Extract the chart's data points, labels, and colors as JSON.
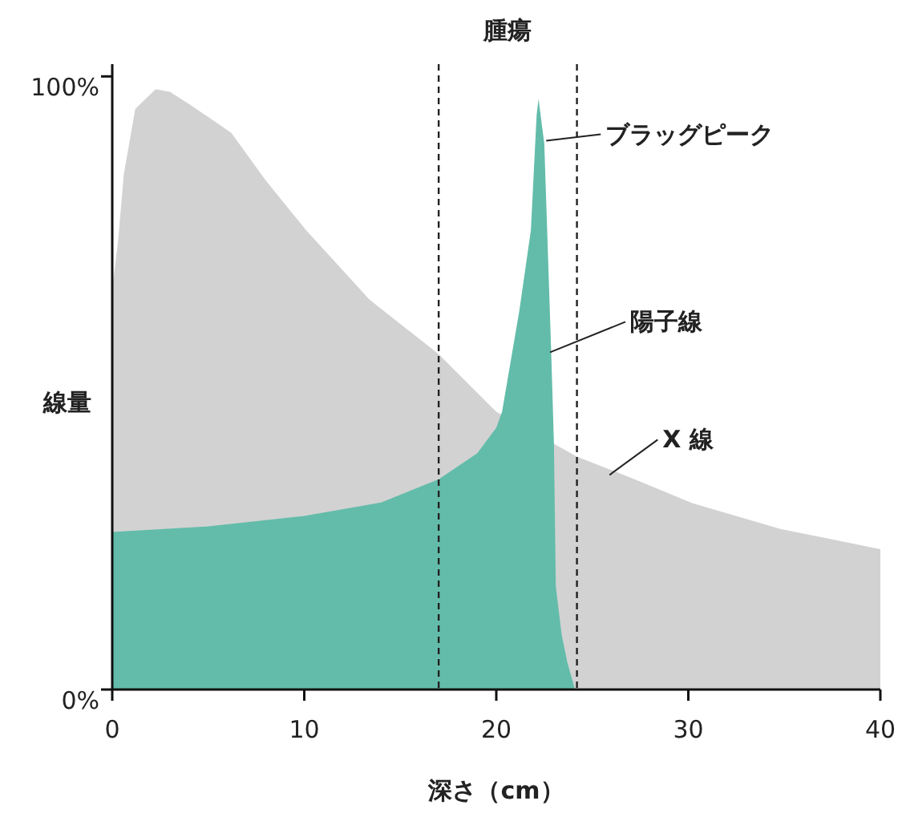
{
  "chart_data": {
    "type": "area",
    "xlabel": "深さ（cm）",
    "ylabel": "線量",
    "xlim": [
      0,
      40
    ],
    "ylim": [
      0,
      102
    ],
    "xticks": [
      0,
      10,
      20,
      30,
      40
    ],
    "yticks": [
      {
        "value": 0,
        "label": "0%"
      },
      {
        "value": 100,
        "label": "100%"
      }
    ],
    "series": [
      {
        "color": "#d2d2d2",
        "x": [
          0,
          0.3,
          0.6,
          1.2,
          2.26,
          3,
          4,
          6.2,
          8,
          10.1,
          13.4,
          17,
          20,
          24.2,
          27.2,
          30.2,
          34.8,
          40
        ],
        "values": [
          65.4,
          73,
          84,
          94.7,
          97.9,
          97.5,
          95.5,
          90.8,
          83,
          74.9,
          63.6,
          54.7,
          45.3,
          38,
          34.3,
          30.4,
          26.2,
          22.9
        ]
      },
      {
        "color": "#63bcaa",
        "x": [
          0,
          5,
          10,
          14,
          17,
          19,
          20,
          20.3,
          21.2,
          21.8,
          22.1,
          22.2,
          22.5,
          22.85,
          23,
          23.1,
          23.4,
          23.7,
          24.1
        ],
        "values": [
          25.7,
          26.6,
          28.3,
          30.5,
          34.3,
          38.5,
          42.7,
          45.3,
          61.8,
          74.9,
          93.7,
          96.3,
          89,
          56,
          40.3,
          16.8,
          9,
          4.4,
          0
        ]
      }
    ],
    "ref_lines": [
      {
        "axis": "x",
        "value": 17,
        "line_style": "dashed"
      },
      {
        "axis": "x",
        "value": 24.2,
        "line_style": "dashed"
      }
    ],
    "annotations": [
      "腫瘍",
      {
        "text": "ブラッグピーク",
        "x": 22.6,
        "y": 89.5
      },
      {
        "text": "陽子線",
        "x": 22.8,
        "y": 55
      },
      {
        "text": "X 線",
        "x": 25.9,
        "y": 35
      }
    ],
    "grid": false
  }
}
